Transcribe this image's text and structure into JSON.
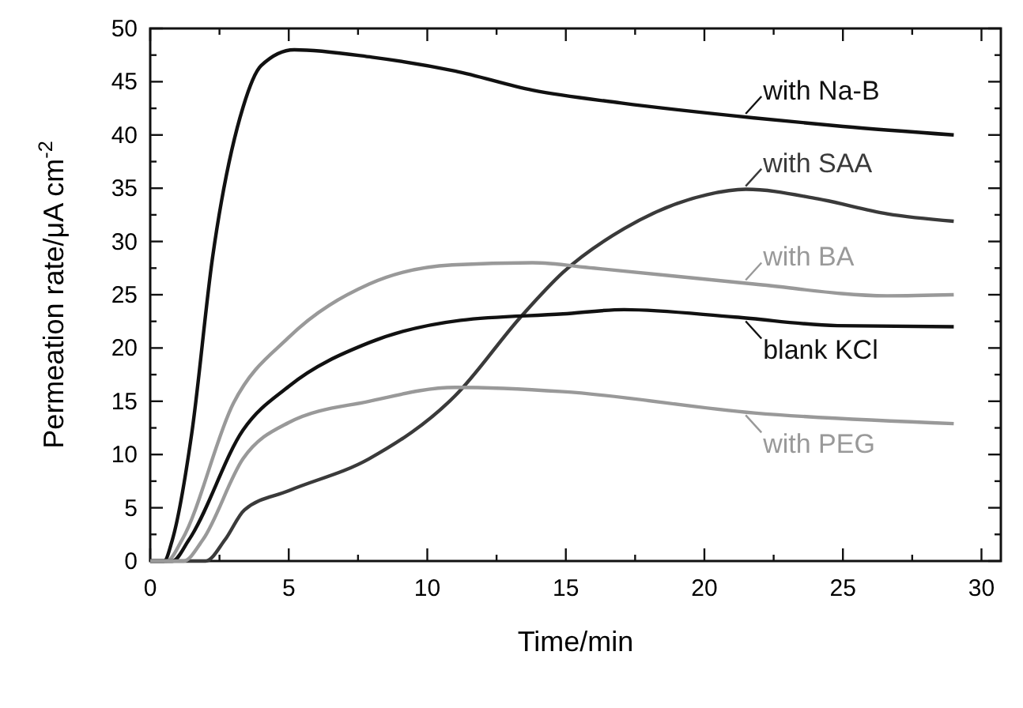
{
  "chart_data": {
    "type": "line",
    "xlabel": "Time/min",
    "ylabel": "Permeation rate/μA cm$^{-2}$",
    "xlim": [
      0,
      30.7
    ],
    "ylim": [
      0,
      50
    ],
    "xticks": [
      0,
      {
        "value": 2.5,
        "label": null
      },
      5,
      {
        "value": 7.5,
        "label": null
      },
      10,
      {
        "value": 12.5,
        "label": null
      },
      15,
      {
        "value": 17.5,
        "label": null
      },
      20,
      {
        "value": 22.5,
        "label": null
      },
      25,
      {
        "value": 27.5,
        "label": null
      },
      30
    ],
    "yticks": [
      0,
      {
        "value": 2.5,
        "label": null
      },
      5,
      {
        "value": 7.5,
        "label": null
      },
      10,
      {
        "value": 12.5,
        "label": null
      },
      15,
      {
        "value": 17.5,
        "label": null
      },
      20,
      {
        "value": 22.5,
        "label": null
      },
      25,
      {
        "value": 27.5,
        "label": null
      },
      30,
      {
        "value": 32.5,
        "label": null
      },
      35,
      {
        "value": 37.5,
        "label": null
      },
      40,
      {
        "value": 42.5,
        "label": null
      },
      45,
      {
        "value": 47.5,
        "label": null
      },
      50
    ],
    "grid": false,
    "legend": "right",
    "marker": "none",
    "line_style": "solid",
    "series": [
      {
        "name": "with Na-B",
        "color": "#111111",
        "x": [
          0,
          0.5,
          0.8,
          1.5,
          2.25,
          3.35,
          4,
          5.2,
          8,
          11,
          13.8,
          17,
          21.8,
          25,
          29
        ],
        "values": [
          0,
          0,
          2,
          12,
          28.5,
          42.6,
          46.5,
          48,
          47.3,
          46,
          44.2,
          43,
          41.6,
          40.8,
          40
        ]
      },
      {
        "name": "with SAA",
        "color": "#3a3a3a",
        "x": [
          0,
          2,
          2.7,
          3.4,
          5,
          7.9,
          11,
          13.4,
          14.9,
          17.1,
          20.1,
          21.5,
          24.1,
          26.6,
          29
        ],
        "values": [
          0,
          0,
          2,
          4.8,
          6.6,
          9.6,
          15.5,
          23,
          27.1,
          31.2,
          34.4,
          34.9,
          34,
          32.6,
          31.9
        ]
      },
      {
        "name": "with BA",
        "color": "#999999",
        "x": [
          0,
          0.6,
          1.15,
          3,
          5,
          7.9,
          10.9,
          13.8,
          16,
          21.8,
          26.6,
          29
        ],
        "values": [
          0,
          0,
          2,
          14.8,
          21,
          26,
          27.8,
          28,
          27.5,
          26,
          24.9,
          25
        ]
      },
      {
        "name": "blank KCl",
        "color": "#111111",
        "x": [
          0,
          0.8,
          1.4,
          3.35,
          5,
          7.9,
          11.2,
          14.9,
          17.1,
          21.1,
          24.8,
          29
        ],
        "values": [
          0,
          0,
          2,
          12.3,
          16.4,
          20.5,
          22.6,
          23.2,
          23.6,
          22.9,
          22.1,
          22
        ]
      },
      {
        "name": "with PEG",
        "color": "#999999",
        "x": [
          0,
          1.2,
          1.9,
          3.35,
          5,
          7.9,
          11,
          14.9,
          21.8,
          29
        ],
        "values": [
          0,
          0,
          2,
          9.6,
          13,
          15,
          16.3,
          15.9,
          13.9,
          12.9
        ]
      }
    ]
  }
}
